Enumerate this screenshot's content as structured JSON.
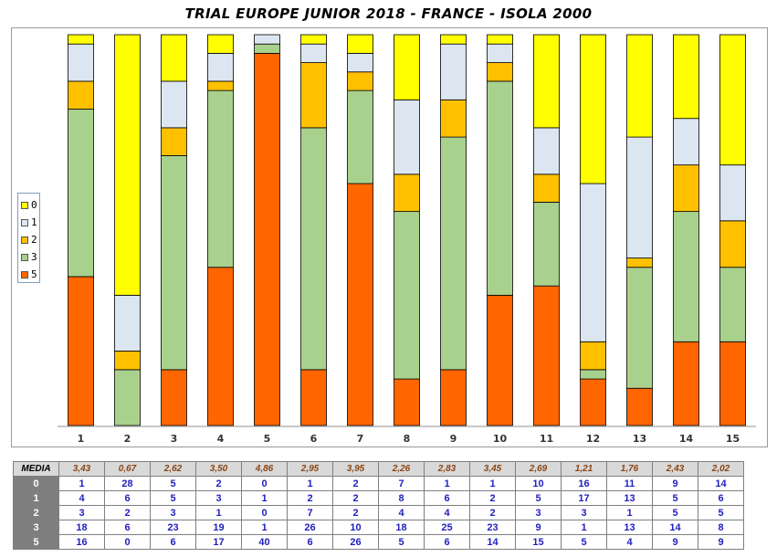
{
  "chart_data": {
    "type": "bar",
    "stacked": true,
    "percent_stacked": true,
    "title": "TRIAL EUROPE JUNIOR 2018 - FRANCE - ISOLA 2000",
    "categories": [
      "1",
      "2",
      "3",
      "4",
      "5",
      "6",
      "7",
      "8",
      "9",
      "10",
      "11",
      "12",
      "13",
      "14",
      "15"
    ],
    "series": [
      {
        "name": "5",
        "color": "#ff6600",
        "values": [
          16,
          0,
          6,
          17,
          40,
          6,
          26,
          5,
          6,
          14,
          15,
          5,
          4,
          9,
          9
        ]
      },
      {
        "name": "3",
        "color": "#a9d18e",
        "values": [
          18,
          6,
          23,
          19,
          1,
          26,
          10,
          18,
          25,
          23,
          9,
          1,
          13,
          14,
          8
        ]
      },
      {
        "name": "2",
        "color": "#ffc000",
        "values": [
          3,
          2,
          3,
          1,
          0,
          7,
          2,
          4,
          4,
          2,
          3,
          3,
          1,
          5,
          5
        ]
      },
      {
        "name": "1",
        "color": "#dce6f1",
        "values": [
          4,
          6,
          5,
          3,
          1,
          2,
          2,
          8,
          6,
          2,
          5,
          17,
          13,
          5,
          6
        ]
      },
      {
        "name": "0",
        "color": "#ffff00",
        "values": [
          1,
          28,
          5,
          2,
          0,
          1,
          2,
          7,
          1,
          1,
          10,
          16,
          11,
          9,
          14
        ]
      }
    ],
    "legend_order": [
      "0",
      "1",
      "2",
      "3",
      "5"
    ],
    "legend_position": "left",
    "grid": false
  },
  "table": {
    "media_label": "MEDIA",
    "media": [
      "3,43",
      "0,67",
      "2,62",
      "3,50",
      "4,86",
      "2,95",
      "3,95",
      "2,26",
      "2,83",
      "3,45",
      "2,69",
      "1,21",
      "1,76",
      "2,43",
      "2,02"
    ],
    "rows": [
      {
        "label": "0",
        "values": [
          "1",
          "28",
          "5",
          "2",
          "0",
          "1",
          "2",
          "7",
          "1",
          "1",
          "10",
          "16",
          "11",
          "9",
          "14"
        ]
      },
      {
        "label": "1",
        "values": [
          "4",
          "6",
          "5",
          "3",
          "1",
          "2",
          "2",
          "8",
          "6",
          "2",
          "5",
          "17",
          "13",
          "5",
          "6"
        ]
      },
      {
        "label": "2",
        "values": [
          "3",
          "2",
          "3",
          "1",
          "0",
          "7",
          "2",
          "4",
          "4",
          "2",
          "3",
          "3",
          "1",
          "5",
          "5"
        ]
      },
      {
        "label": "3",
        "values": [
          "18",
          "6",
          "23",
          "19",
          "1",
          "26",
          "10",
          "18",
          "25",
          "23",
          "9",
          "1",
          "13",
          "14",
          "8"
        ]
      },
      {
        "label": "5",
        "values": [
          "16",
          "0",
          "6",
          "17",
          "40",
          "6",
          "26",
          "5",
          "6",
          "14",
          "15",
          "5",
          "4",
          "9",
          "9"
        ]
      }
    ]
  }
}
